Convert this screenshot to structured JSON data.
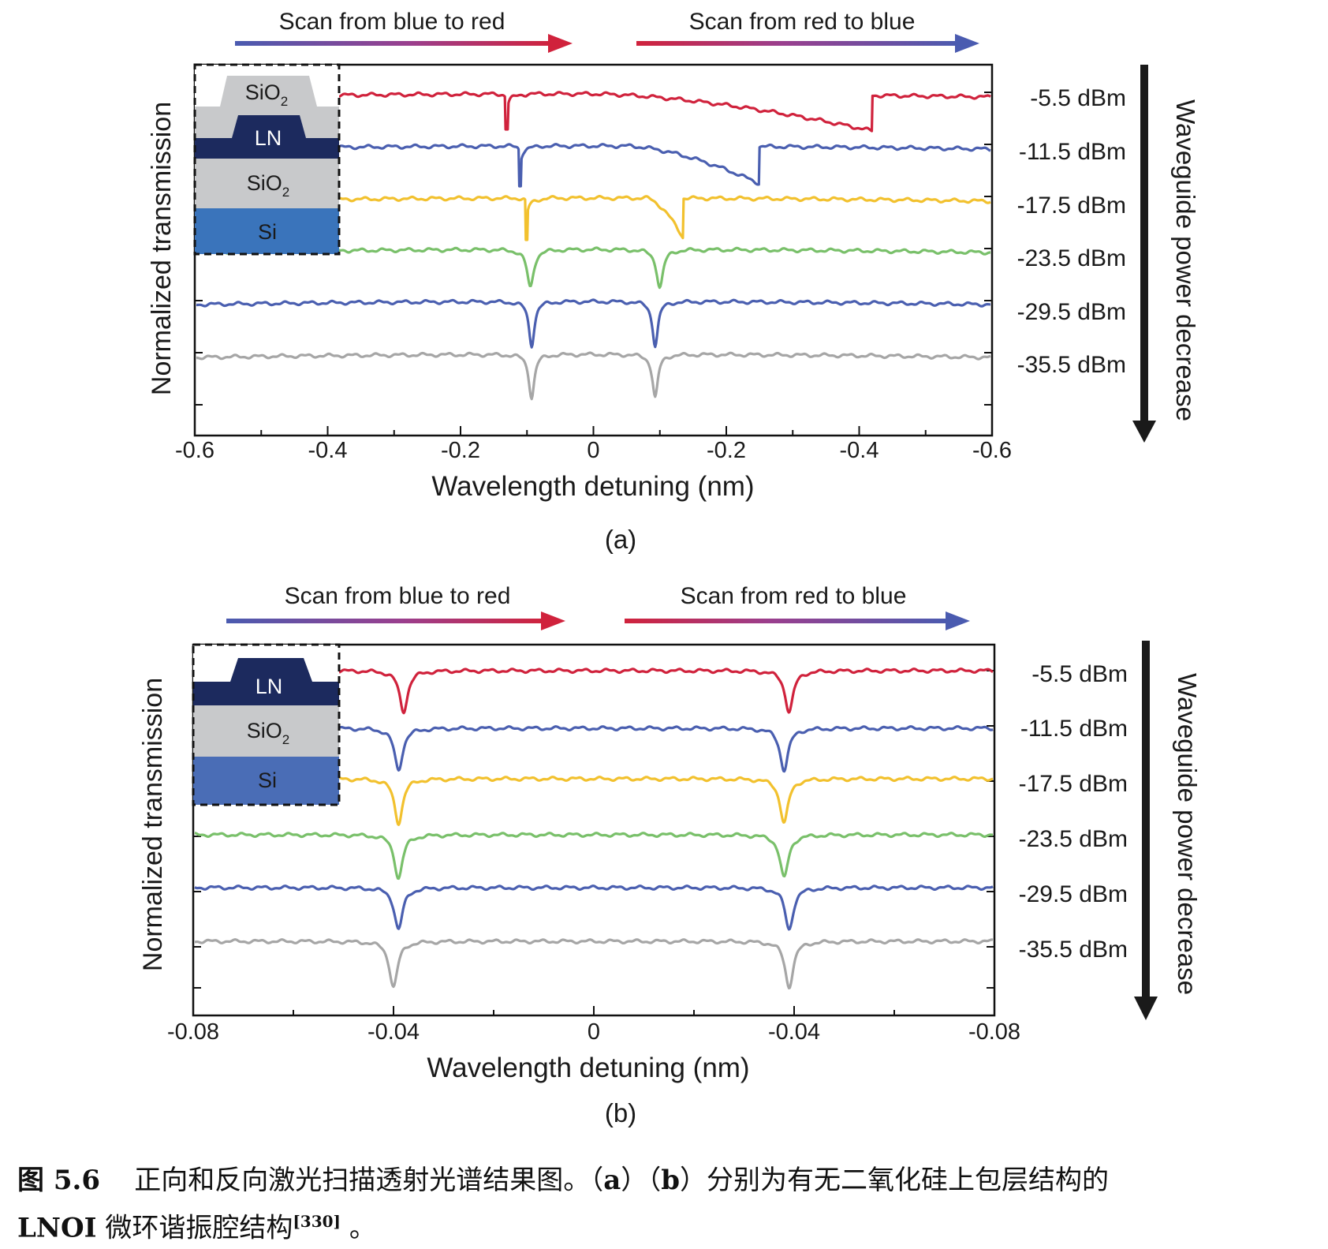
{
  "chart_data": [
    {
      "type": "line",
      "panel_label": "(a)",
      "xlabel": "Wavelength detuning (nm)",
      "ylabel": "Normalized transmission",
      "x_tick_labels": [
        "-0.6",
        "-0.4",
        "-0.2",
        "0",
        "-0.2",
        "-0.4",
        "-0.6"
      ],
      "xlim": [
        -0.6,
        0.6
      ],
      "scan_left": "Scan from blue to red",
      "scan_right": "Scan from red to blue",
      "right_axis_label": "Waveguide power decrease",
      "inset_layers": [
        "SiO2",
        "LN",
        "SiO2",
        "Si"
      ],
      "series": [
        {
          "name": "-5.5 dBm",
          "color": "#d0223c",
          "dips": [
            {
              "x": -0.13,
              "shape": "sharp"
            },
            {
              "x": 0.42,
              "shape": "triangle",
              "start": 0.0
            }
          ]
        },
        {
          "name": "-11.5 dBm",
          "color": "#4a5fb0",
          "dips": [
            {
              "x": -0.11,
              "shape": "sharp"
            },
            {
              "x": 0.25,
              "shape": "triangle",
              "start": 0.05
            }
          ]
        },
        {
          "name": "-17.5 dBm",
          "color": "#f2c12e",
          "dips": [
            {
              "x": -0.1,
              "shape": "sharp"
            },
            {
              "x": 0.135,
              "shape": "triangle",
              "start": 0.08
            }
          ]
        },
        {
          "name": "-23.5 dBm",
          "color": "#79c06a",
          "dips": [
            {
              "x": -0.095,
              "shape": "lorentz"
            },
            {
              "x": 0.1,
              "shape": "lorentz"
            }
          ]
        },
        {
          "name": "-29.5 dBm",
          "color": "#4a5fb0",
          "dips": [
            {
              "x": -0.093,
              "shape": "lorentz"
            },
            {
              "x": 0.093,
              "shape": "lorentz"
            }
          ]
        },
        {
          "name": "-35.5 dBm",
          "color": "#a6a6a6",
          "dips": [
            {
              "x": -0.093,
              "shape": "lorentz"
            },
            {
              "x": 0.093,
              "shape": "lorentz"
            }
          ]
        }
      ]
    },
    {
      "type": "line",
      "panel_label": "(b)",
      "xlabel": "Wavelength detuning (nm)",
      "ylabel": "Normalized transmission",
      "x_tick_labels": [
        "-0.08",
        "-0.04",
        "0",
        "-0.04",
        "-0.08"
      ],
      "xlim": [
        -0.08,
        0.08
      ],
      "scan_left": "Scan from blue to red",
      "scan_right": "Scan from red to blue",
      "right_axis_label": "Waveguide power decrease",
      "inset_layers": [
        "LN",
        "SiO2",
        "Si"
      ],
      "series": [
        {
          "name": "-5.5 dBm",
          "color": "#d0223c",
          "dips": [
            {
              "x": -0.038,
              "shape": "lorentz"
            },
            {
              "x": 0.039,
              "shape": "lorentz"
            }
          ]
        },
        {
          "name": "-11.5 dBm",
          "color": "#4a5fb0",
          "dips": [
            {
              "x": -0.039,
              "shape": "lorentz"
            },
            {
              "x": 0.038,
              "shape": "lorentz"
            }
          ]
        },
        {
          "name": "-17.5 dBm",
          "color": "#f2c12e",
          "dips": [
            {
              "x": -0.039,
              "shape": "lorentz"
            },
            {
              "x": 0.038,
              "shape": "lorentz"
            }
          ]
        },
        {
          "name": "-23.5 dBm",
          "color": "#79c06a",
          "dips": [
            {
              "x": -0.039,
              "shape": "lorentz"
            },
            {
              "x": 0.038,
              "shape": "lorentz"
            }
          ]
        },
        {
          "name": "-29.5 dBm",
          "color": "#4a5fb0",
          "dips": [
            {
              "x": -0.039,
              "shape": "lorentz"
            },
            {
              "x": 0.039,
              "shape": "lorentz"
            }
          ]
        },
        {
          "name": "-35.5 dBm",
          "color": "#a6a6a6",
          "dips": [
            {
              "x": -0.04,
              "shape": "lorentz"
            },
            {
              "x": 0.039,
              "shape": "lorentz"
            }
          ]
        }
      ]
    }
  ],
  "caption": {
    "label": "图 5.6",
    "text_a": "正向和反向激光扫描透射光谱结果图。（",
    "a": "a",
    "text_b": "）（",
    "b": "b",
    "text_c": "）分别为有无二氧化硅上包层结构的",
    "lnoi": "LNOI",
    "text_d": " 微环谐振腔结构",
    "ref": "[330]",
    "end": " 。"
  },
  "colors": {
    "arrow_blue": "#4a5bb0",
    "arrow_red": "#d0223c",
    "ln": "#1c2a5e",
    "sio2": "#c8c9cb",
    "si_a": "#3a74bb",
    "si_b": "#4a6db6"
  }
}
